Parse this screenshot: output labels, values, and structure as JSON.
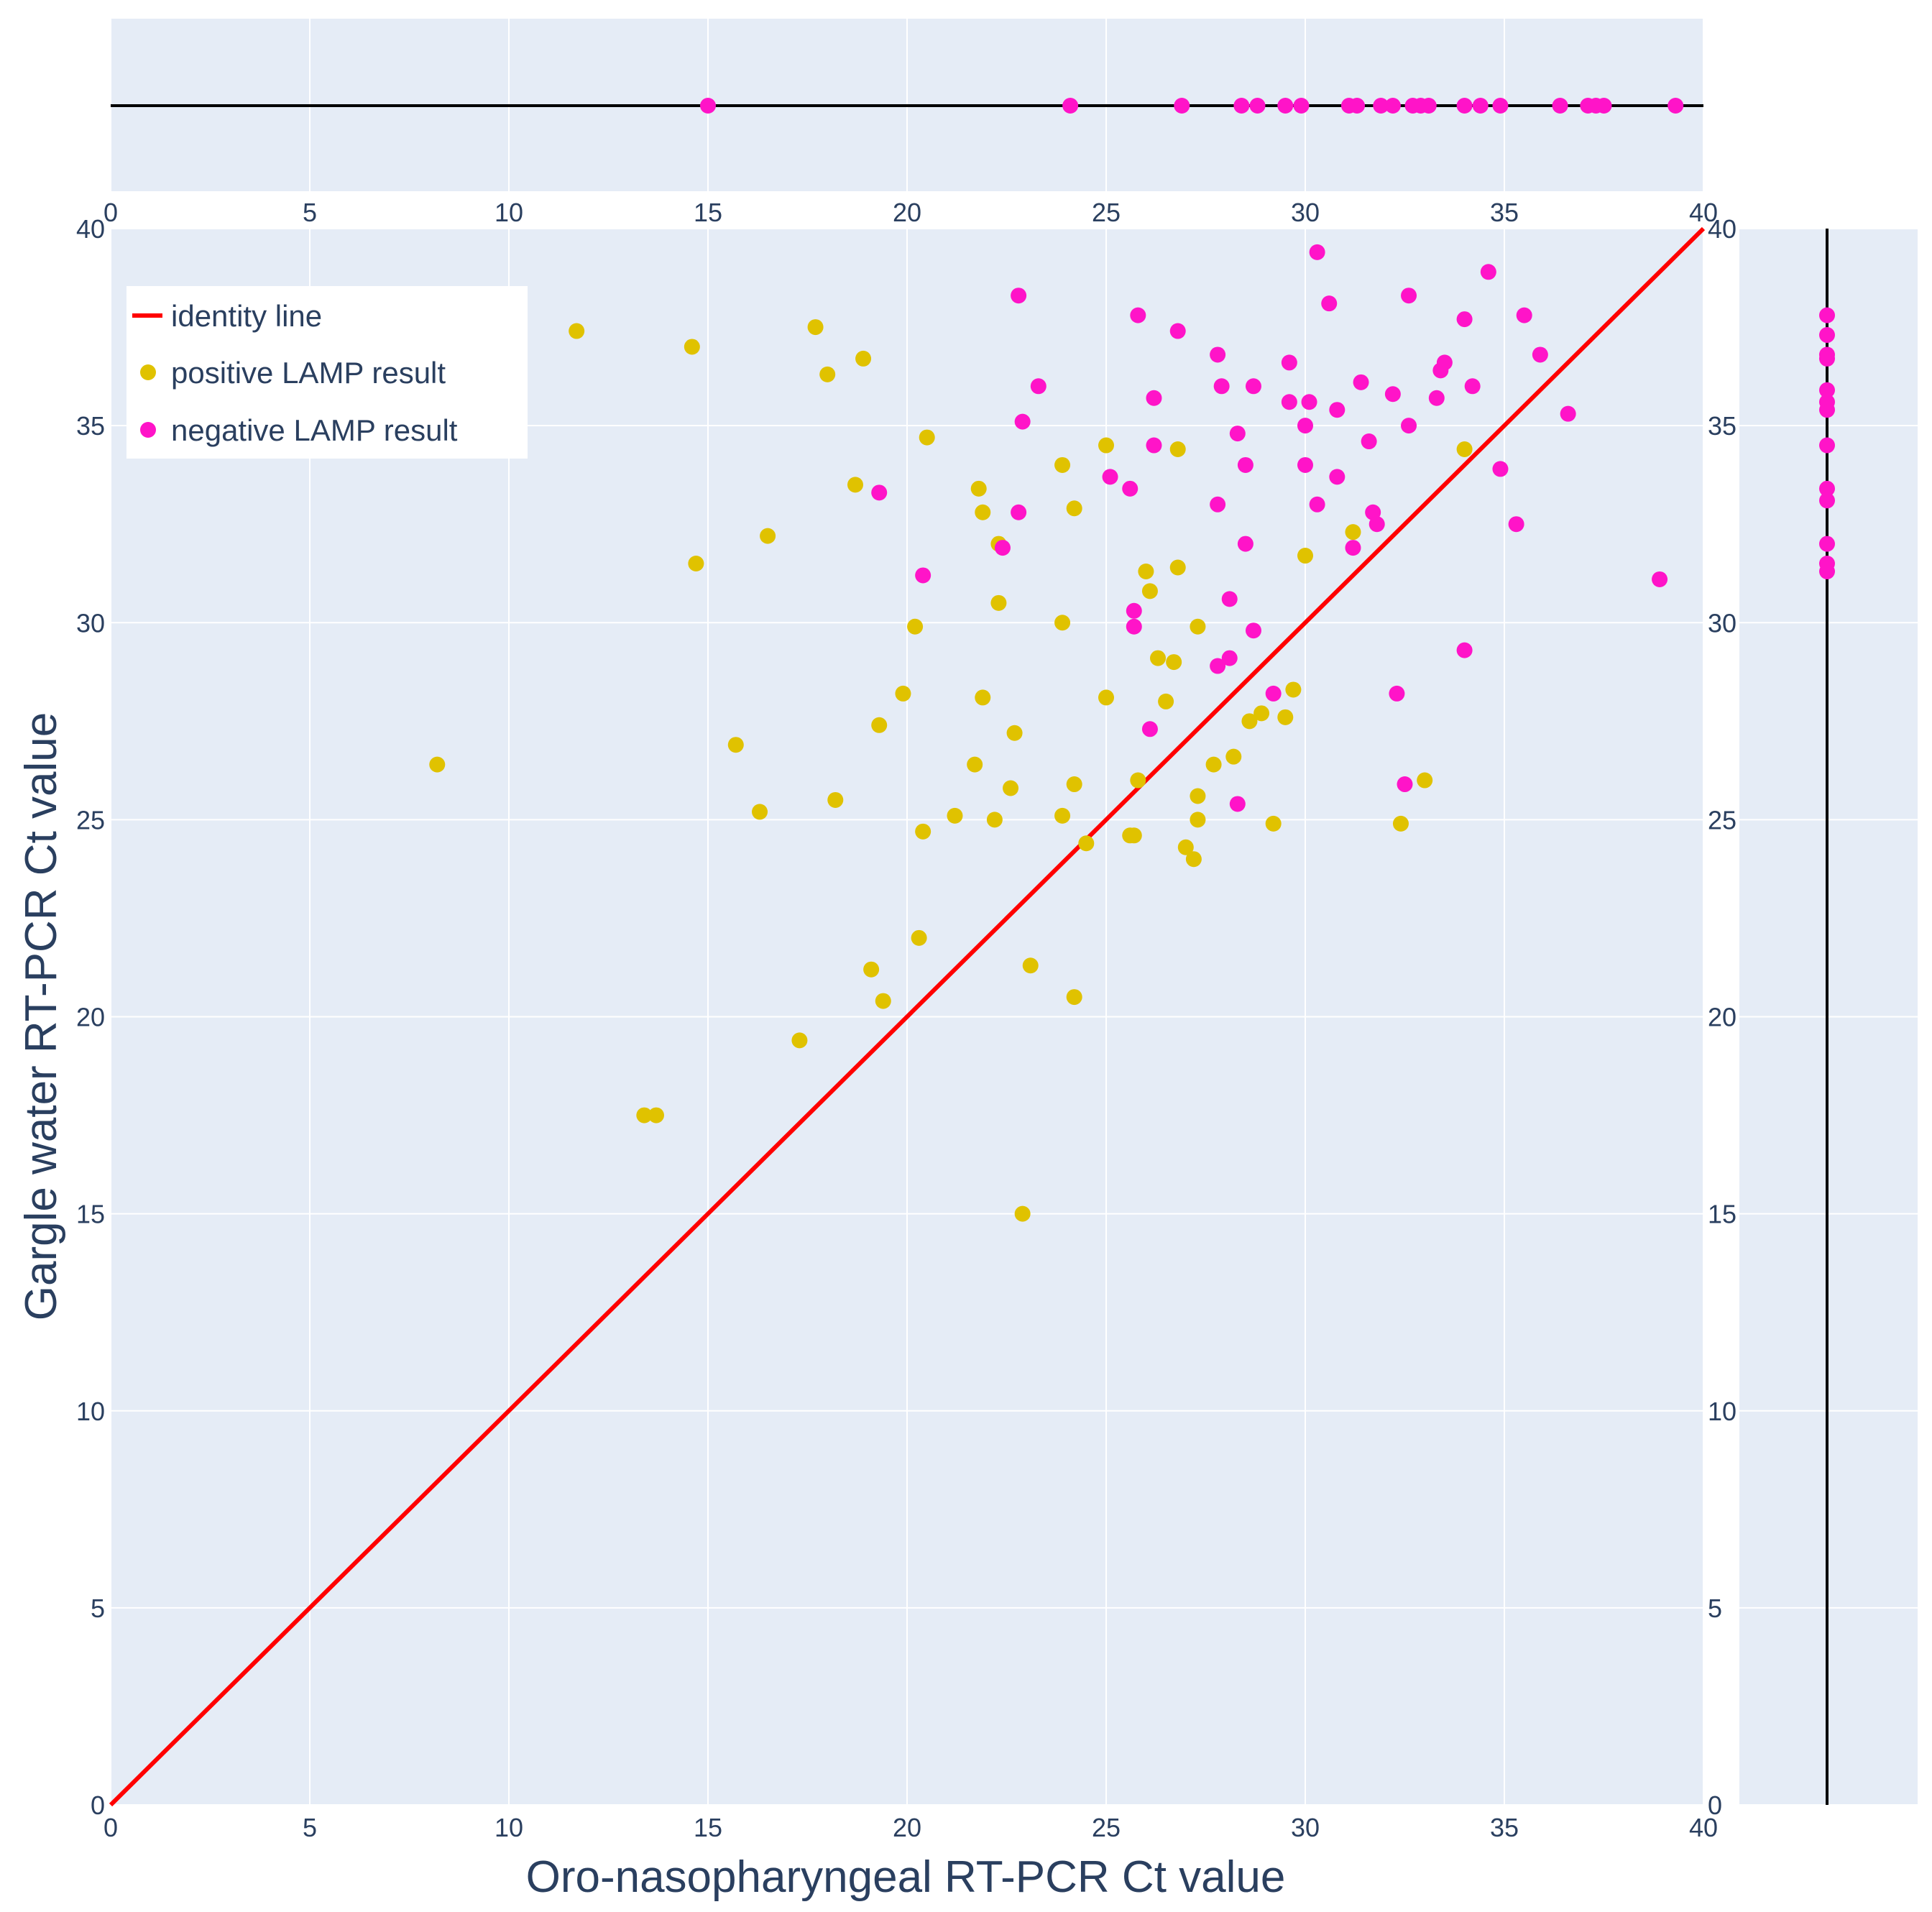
{
  "chart_data": {
    "type": "scatter",
    "xlabel": "Oro-nasopharyngeal RT-PCR Ct value",
    "ylabel": "Gargle water RT-PCR Ct value",
    "xlim": [
      0,
      40
    ],
    "ylim": [
      0,
      40
    ],
    "ticks": [
      "0",
      "5",
      "10",
      "15",
      "20",
      "25",
      "30",
      "35",
      "40"
    ],
    "legend_position": "top-left",
    "colors": {
      "plot_bg": "#e5ecf6",
      "grid": "#ffffff",
      "identity": "#ff0000",
      "positive": "#e0c200",
      "negative": "#ff14c8",
      "rug_line": "#000000"
    },
    "identity_line": {
      "name": "identity line",
      "x": [
        0,
        40
      ],
      "y": [
        0,
        40
      ]
    },
    "series": [
      {
        "name": "positive LAMP result",
        "points": [
          [
            8.2,
            26.4
          ],
          [
            11.7,
            37.4
          ],
          [
            13.4,
            17.5
          ],
          [
            13.7,
            17.5
          ],
          [
            14.6,
            37.0
          ],
          [
            14.7,
            31.5
          ],
          [
            15.7,
            26.9
          ],
          [
            16.3,
            25.2
          ],
          [
            16.5,
            32.2
          ],
          [
            17.3,
            19.4
          ],
          [
            17.7,
            37.5
          ],
          [
            18.0,
            36.3
          ],
          [
            18.2,
            25.5
          ],
          [
            18.7,
            33.5
          ],
          [
            18.9,
            36.7
          ],
          [
            19.1,
            21.2
          ],
          [
            19.3,
            27.4
          ],
          [
            19.4,
            20.4
          ],
          [
            19.9,
            28.2
          ],
          [
            20.2,
            29.9
          ],
          [
            20.3,
            22.0
          ],
          [
            20.4,
            24.7
          ],
          [
            20.5,
            34.7
          ],
          [
            21.2,
            25.1
          ],
          [
            21.7,
            26.4
          ],
          [
            21.8,
            33.4
          ],
          [
            21.9,
            32.8
          ],
          [
            21.9,
            28.1
          ],
          [
            22.2,
            25.0
          ],
          [
            22.3,
            30.5
          ],
          [
            22.3,
            32.0
          ],
          [
            22.6,
            25.8
          ],
          [
            22.7,
            27.2
          ],
          [
            22.9,
            15.0
          ],
          [
            23.1,
            21.3
          ],
          [
            23.9,
            34.0
          ],
          [
            23.9,
            30.0
          ],
          [
            23.9,
            25.1
          ],
          [
            24.2,
            20.5
          ],
          [
            24.2,
            25.9
          ],
          [
            24.2,
            32.9
          ],
          [
            24.5,
            24.4
          ],
          [
            25.0,
            34.5
          ],
          [
            25.0,
            28.1
          ],
          [
            25.6,
            24.6
          ],
          [
            25.7,
            24.6
          ],
          [
            25.8,
            26.0
          ],
          [
            26.0,
            31.3
          ],
          [
            26.1,
            30.8
          ],
          [
            26.3,
            29.1
          ],
          [
            26.5,
            28.0
          ],
          [
            26.7,
            29.0
          ],
          [
            26.8,
            34.4
          ],
          [
            26.8,
            31.4
          ],
          [
            27.0,
            24.3
          ],
          [
            27.2,
            24.0
          ],
          [
            27.3,
            25.6
          ],
          [
            27.3,
            25.0
          ],
          [
            27.3,
            29.9
          ],
          [
            27.7,
            26.4
          ],
          [
            28.2,
            26.6
          ],
          [
            28.6,
            27.5
          ],
          [
            28.9,
            27.7
          ],
          [
            29.2,
            24.9
          ],
          [
            29.5,
            27.6
          ],
          [
            29.7,
            28.3
          ],
          [
            30.0,
            31.7
          ],
          [
            31.2,
            32.3
          ],
          [
            32.4,
            24.9
          ],
          [
            33.0,
            26.0
          ],
          [
            34.0,
            34.4
          ]
        ]
      },
      {
        "name": "negative LAMP result",
        "points": [
          [
            19.3,
            33.3
          ],
          [
            20.4,
            31.2
          ],
          [
            22.4,
            31.9
          ],
          [
            22.8,
            32.8
          ],
          [
            22.8,
            38.3
          ],
          [
            22.9,
            35.1
          ],
          [
            23.3,
            36.0
          ],
          [
            25.1,
            33.7
          ],
          [
            25.6,
            33.4
          ],
          [
            25.7,
            30.3
          ],
          [
            25.7,
            29.9
          ],
          [
            25.8,
            37.8
          ],
          [
            26.1,
            27.3
          ],
          [
            26.2,
            34.5
          ],
          [
            26.2,
            35.7
          ],
          [
            26.8,
            37.4
          ],
          [
            27.8,
            33.0
          ],
          [
            27.8,
            28.9
          ],
          [
            27.8,
            36.8
          ],
          [
            27.9,
            36.0
          ],
          [
            28.1,
            29.1
          ],
          [
            28.1,
            30.6
          ],
          [
            28.3,
            34.8
          ],
          [
            28.3,
            25.4
          ],
          [
            28.5,
            34.0
          ],
          [
            28.5,
            32.0
          ],
          [
            28.7,
            36.0
          ],
          [
            28.7,
            29.8
          ],
          [
            29.2,
            28.2
          ],
          [
            29.6,
            35.6
          ],
          [
            29.6,
            36.6
          ],
          [
            30.0,
            35.0
          ],
          [
            30.0,
            34.0
          ],
          [
            30.1,
            35.6
          ],
          [
            30.3,
            39.4
          ],
          [
            30.3,
            33.0
          ],
          [
            30.6,
            38.1
          ],
          [
            30.8,
            35.4
          ],
          [
            30.8,
            33.7
          ],
          [
            31.2,
            31.9
          ],
          [
            31.4,
            36.1
          ],
          [
            31.6,
            34.6
          ],
          [
            31.7,
            32.8
          ],
          [
            31.8,
            32.5
          ],
          [
            32.2,
            35.8
          ],
          [
            32.3,
            28.2
          ],
          [
            32.5,
            25.9
          ],
          [
            32.6,
            35.0
          ],
          [
            32.6,
            38.3
          ],
          [
            33.3,
            35.7
          ],
          [
            33.4,
            36.4
          ],
          [
            33.5,
            36.6
          ],
          [
            34.0,
            37.7
          ],
          [
            34.0,
            29.3
          ],
          [
            34.2,
            36.0
          ],
          [
            34.6,
            38.9
          ],
          [
            34.9,
            33.9
          ],
          [
            35.3,
            32.5
          ],
          [
            35.5,
            37.8
          ],
          [
            35.9,
            36.8
          ],
          [
            36.6,
            35.3
          ],
          [
            38.9,
            31.1
          ]
        ]
      }
    ],
    "top_rug": {
      "name": "negative LAMP result x-distribution",
      "values": [
        15.0,
        24.1,
        26.9,
        28.4,
        28.8,
        29.5,
        29.9,
        31.1,
        31.3,
        31.9,
        32.2,
        32.7,
        32.9,
        33.1,
        34.0,
        34.4,
        34.9,
        36.4,
        37.1,
        37.3,
        37.5,
        39.3
      ]
    },
    "right_rug": {
      "name": "negative LAMP result y-distribution",
      "values": [
        31.3,
        31.5,
        32.0,
        33.1,
        33.4,
        34.5,
        35.4,
        35.6,
        35.9,
        36.7,
        36.8,
        37.3,
        37.8
      ]
    }
  }
}
